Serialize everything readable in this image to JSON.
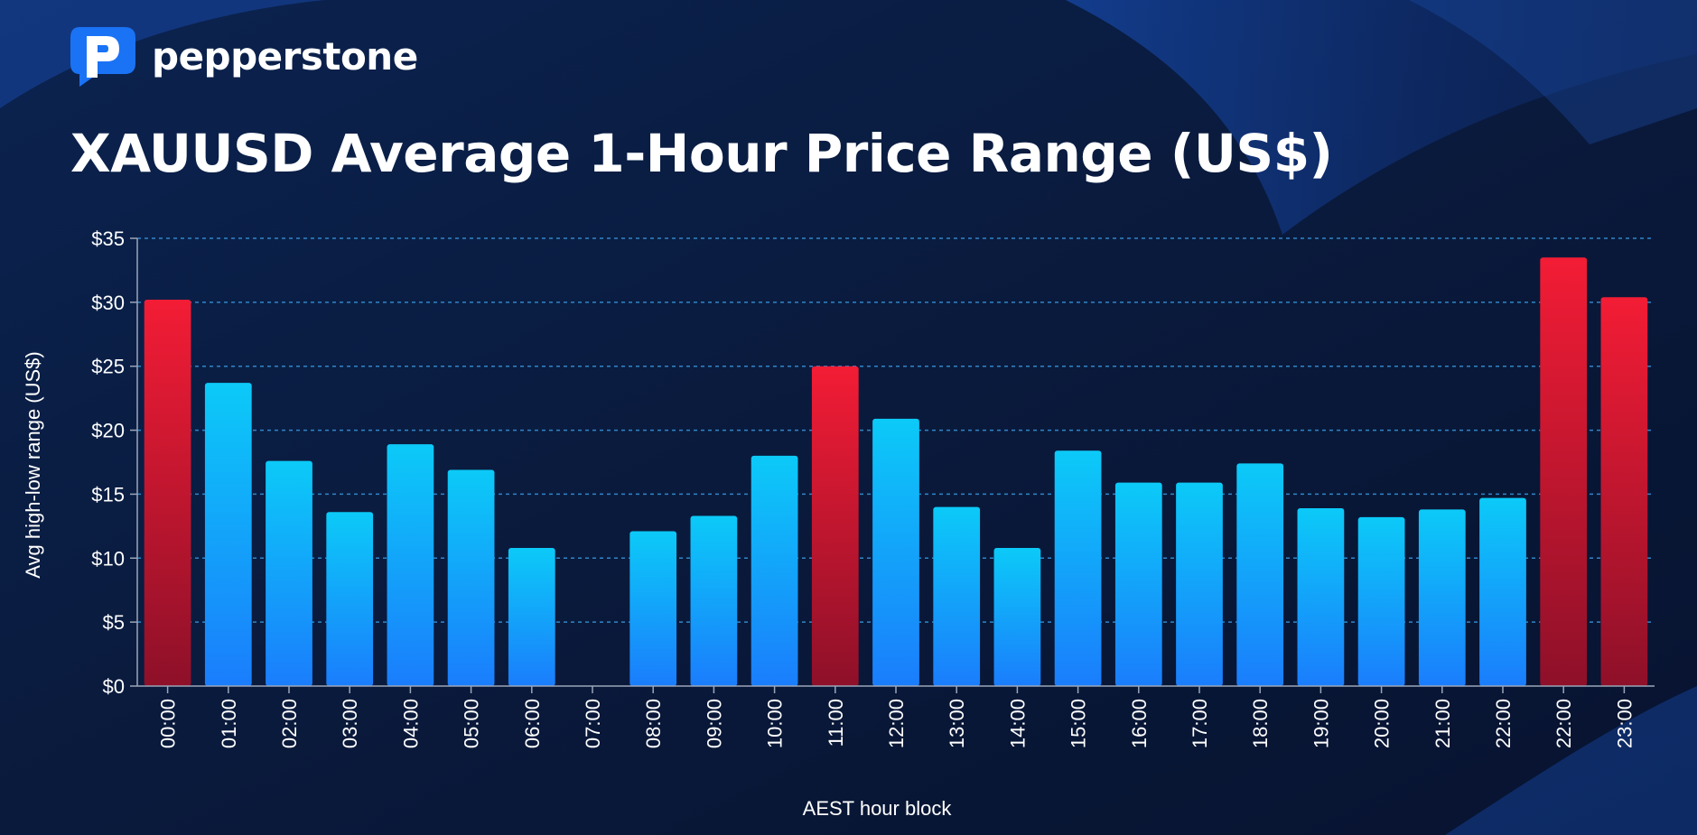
{
  "brand": {
    "name": "pepperstone",
    "logo_icon": "pepperstone-p-logo-icon"
  },
  "colors": {
    "background": "#0a1a3a",
    "bar_blue_top": "#0ccaf8",
    "bar_blue_bottom": "#1a7dfc",
    "bar_red_top": "#f31c35",
    "bar_red_bottom": "#8e1029",
    "gridline": "#2f86c8",
    "axis": "#9aa6b8"
  },
  "chart_data": {
    "type": "bar",
    "title": "XAUUSD Average 1-Hour Price Range (US$)",
    "xlabel": "AEST hour block",
    "ylabel": "Avg high-low range (US$)",
    "ylim": [
      0,
      35
    ],
    "yticks": [
      0,
      5,
      10,
      15,
      20,
      25,
      30,
      35
    ],
    "ytick_labels": [
      "$0",
      "$5",
      "$10",
      "$15",
      "$20",
      "$25",
      "$30",
      "$35"
    ],
    "grid": true,
    "legend": "none",
    "categories": [
      "00:00",
      "01:00",
      "02:00",
      "03:00",
      "04:00",
      "05:00",
      "06:00",
      "07:00",
      "08:00",
      "09:00",
      "10:00",
      "11:00",
      "12:00",
      "13:00",
      "14:00",
      "15:00",
      "16:00",
      "17:00",
      "18:00",
      "19:00",
      "20:00",
      "21:00",
      "22:00",
      "22:00",
      "23:00"
    ],
    "values": [
      30.2,
      23.7,
      17.6,
      13.6,
      18.9,
      16.9,
      10.8,
      0,
      12.1,
      13.3,
      18.0,
      25.0,
      20.9,
      14.0,
      10.8,
      18.4,
      15.9,
      15.9,
      17.4,
      13.9,
      13.2,
      13.8,
      14.7,
      33.5,
      30.4
    ],
    "highlight": [
      true,
      false,
      false,
      false,
      false,
      false,
      false,
      false,
      false,
      false,
      false,
      true,
      false,
      false,
      false,
      false,
      false,
      false,
      false,
      false,
      false,
      false,
      false,
      true,
      true
    ]
  }
}
